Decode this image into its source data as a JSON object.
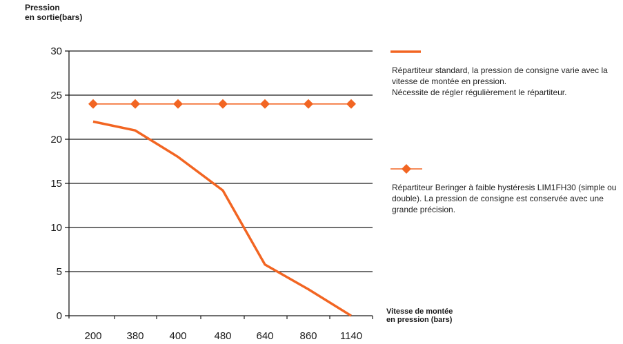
{
  "chart_data": {
    "type": "line",
    "ylabel": [
      "Pression",
      "en sortie(bars)"
    ],
    "xlabel": [
      "Vitesse de montée",
      "en pression (bars)"
    ],
    "categories": [
      "200",
      "380",
      "400",
      "480",
      "640",
      "860",
      "1140"
    ],
    "ylim": [
      0,
      30
    ],
    "yticks": [
      0,
      5,
      10,
      15,
      20,
      25,
      30
    ],
    "grid": true,
    "legend_position": "right",
    "series": [
      {
        "marker": "none",
        "color": "#f26522",
        "values": [
          22,
          21,
          18,
          14.2,
          5.8,
          3,
          0
        ],
        "legend": [
          "Répartiteur standard, la pression de consigne varie avec la vitesse de montée en pression.",
          "Nécessite de régler régulièrement le répartiteur."
        ]
      },
      {
        "marker": "diamond",
        "color": "#f26522",
        "values": [
          24,
          24,
          24,
          24,
          24,
          24,
          24
        ],
        "legend": [
          "Répartiteur Beringer à faible hystéresis LIM1FH30 (simple ou double). La pression de consigne est conservée avec une grande précision."
        ]
      }
    ]
  }
}
